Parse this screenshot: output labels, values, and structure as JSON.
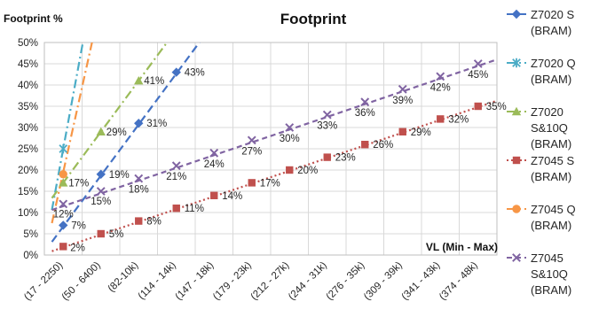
{
  "chart_data": {
    "type": "line",
    "title": "Footprint",
    "ylabel": "Footprint %",
    "xlabel": "VL (Min - Max)",
    "ylim": [
      0,
      50
    ],
    "ytick_step": 5,
    "ytick_suffix": "%",
    "grid": true,
    "legend_position": "right",
    "categories": [
      "(17 - 2250)",
      "(50 - 6400)",
      "(82-10k)",
      "(114 - 14k)",
      "(147 - 18k)",
      "(179 - 23k)",
      "(212 - 27k)",
      "(244 - 31k)",
      "(276 - 35k)",
      "(309 - 39k)",
      "(341 - 43k)",
      "(374 - 48k)"
    ],
    "series": [
      {
        "name": "Z7020 S (BRAM)",
        "legend_lines": [
          "Z7020 S",
          "(BRAM)"
        ],
        "color": "#4472C4",
        "marker": "diamond",
        "values": [
          7,
          19,
          31,
          43,
          null,
          null,
          null,
          null,
          null,
          null,
          null,
          null
        ],
        "labels": [
          "7%",
          "19%",
          "31%",
          "43%"
        ],
        "trend": {
          "x0": 0,
          "y0": 6.7,
          "slope": 12,
          "dash": "long"
        }
      },
      {
        "name": "Z7020 Q (BRAM)",
        "legend_lines": [
          "Z7020 Q",
          "(BRAM)"
        ],
        "color": "#4BACC6",
        "marker": "asterisk",
        "values": [
          25,
          null,
          null,
          null,
          null,
          null,
          null,
          null,
          null,
          null,
          null,
          null
        ],
        "labels": [],
        "trend": {
          "x0": 0,
          "y0": 25,
          "slope": 48,
          "dash": "dashdot"
        }
      },
      {
        "name": "Z7020 S&10Q (BRAM)",
        "legend_lines": [
          "Z7020",
          "S&10Q",
          "(BRAM)"
        ],
        "color": "#9BBB59",
        "marker": "triangle",
        "values": [
          17,
          29,
          41,
          null,
          null,
          null,
          null,
          null,
          null,
          null,
          null,
          null
        ],
        "labels": [
          "17%",
          "29%",
          "41%"
        ],
        "trend": {
          "x0": 0,
          "y0": 17,
          "slope": 12,
          "dash": "dashdot"
        }
      },
      {
        "name": "Z7045 S (BRAM)",
        "legend_lines": [
          "Z7045 S",
          "(BRAM)"
        ],
        "color": "#C0504D",
        "marker": "square",
        "values": [
          2,
          5,
          8,
          11,
          14,
          17,
          20,
          23,
          26,
          29,
          32,
          35
        ],
        "labels": [
          "2%",
          "5%",
          "8%",
          "11%",
          "14%",
          "17%",
          "20%",
          "23%",
          "26%",
          "29%",
          "32%",
          "35%"
        ],
        "trend": {
          "x0": 0,
          "y0": 1.8,
          "slope": 3.0,
          "dash": "dot"
        }
      },
      {
        "name": "Z7045 Q (BRAM)",
        "legend_lines": [
          "Z7045 Q",
          "(BRAM)"
        ],
        "color": "#F79646",
        "marker": "circle",
        "values": [
          19,
          null,
          null,
          null,
          null,
          null,
          null,
          null,
          null,
          null,
          null,
          null
        ],
        "labels": [],
        "trend": {
          "x0": 0,
          "y0": 19.5,
          "slope": 40,
          "dash": "dashdot"
        }
      },
      {
        "name": "Z7045 S&10Q (BRAM)",
        "legend_lines": [
          "Z7045",
          "S&10Q",
          "(BRAM)"
        ],
        "color": "#8064A2",
        "marker": "x",
        "values": [
          12,
          15,
          18,
          21,
          24,
          27,
          30,
          33,
          36,
          39,
          42,
          45
        ],
        "labels": [
          "12%",
          "15%",
          "18%",
          "21%",
          "24%",
          "27%",
          "30%",
          "33%",
          "36%",
          "39%",
          "42%",
          "45%"
        ],
        "trend": {
          "x0": 0,
          "y0": 11.5,
          "slope": 3.0,
          "dash": "dash"
        }
      }
    ]
  }
}
